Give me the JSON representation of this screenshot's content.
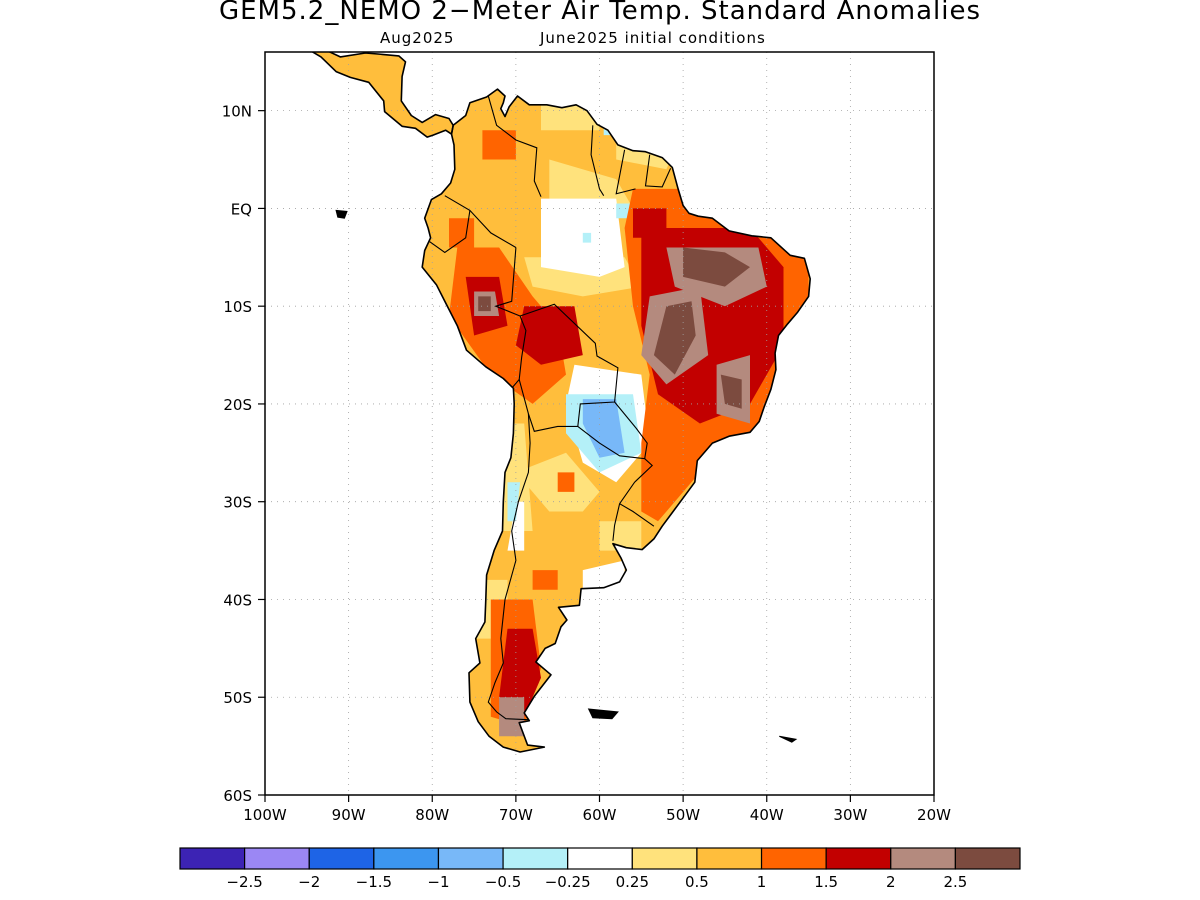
{
  "header": {
    "title": "GEM5.2_NEMO 2−Meter Air Temp. Standard Anomalies",
    "valid_month": "Aug2025",
    "initial_conditions": "June2025 initial conditions"
  },
  "map": {
    "lon_range": [
      -100,
      -20
    ],
    "lat_range": [
      -60,
      16
    ],
    "lat_ticks": [
      {
        "value": 10,
        "label": "10N"
      },
      {
        "value": 0,
        "label": "EQ"
      },
      {
        "value": -10,
        "label": "10S"
      },
      {
        "value": -20,
        "label": "20S"
      },
      {
        "value": -30,
        "label": "30S"
      },
      {
        "value": -40,
        "label": "40S"
      },
      {
        "value": -50,
        "label": "50S"
      },
      {
        "value": -60,
        "label": "60S"
      }
    ],
    "lon_ticks": [
      {
        "value": -100,
        "label": "100W"
      },
      {
        "value": -90,
        "label": "90W"
      },
      {
        "value": -80,
        "label": "80W"
      },
      {
        "value": -70,
        "label": "70W"
      },
      {
        "value": -60,
        "label": "60W"
      },
      {
        "value": -50,
        "label": "50W"
      },
      {
        "value": -40,
        "label": "40W"
      },
      {
        "value": -30,
        "label": "30W"
      },
      {
        "value": -20,
        "label": "20W"
      }
    ],
    "grid": "dotted",
    "colors": {
      "neutral": "#ffffff",
      "pos_025_05": "#ffe27c",
      "pos_05_1": "#ffbe3c",
      "pos_1_15": "#ff6400",
      "pos_15_2": "#c20000",
      "pos_2_25": "#b48a7e",
      "pos_gt_25": "#7c4b3f",
      "neg_025_05": "#b4f0f8",
      "neg_05_1": "#78b8f8",
      "neg_1_15": "#3c96f0"
    }
  },
  "legend": {
    "colors": [
      "#3c23b4",
      "#9b87f4",
      "#1e64e6",
      "#3c96f0",
      "#78b8f8",
      "#b4f0f8",
      "#ffffff",
      "#ffe27c",
      "#ffbe3c",
      "#ff6400",
      "#c20000",
      "#b48a7e",
      "#7c4b3f"
    ],
    "labels": [
      "−2.5",
      "−2",
      "−1.5",
      "−1",
      "−0.5",
      "−0.25",
      "0.25",
      "0.5",
      "1",
      "1.5",
      "2",
      "2.5"
    ]
  }
}
